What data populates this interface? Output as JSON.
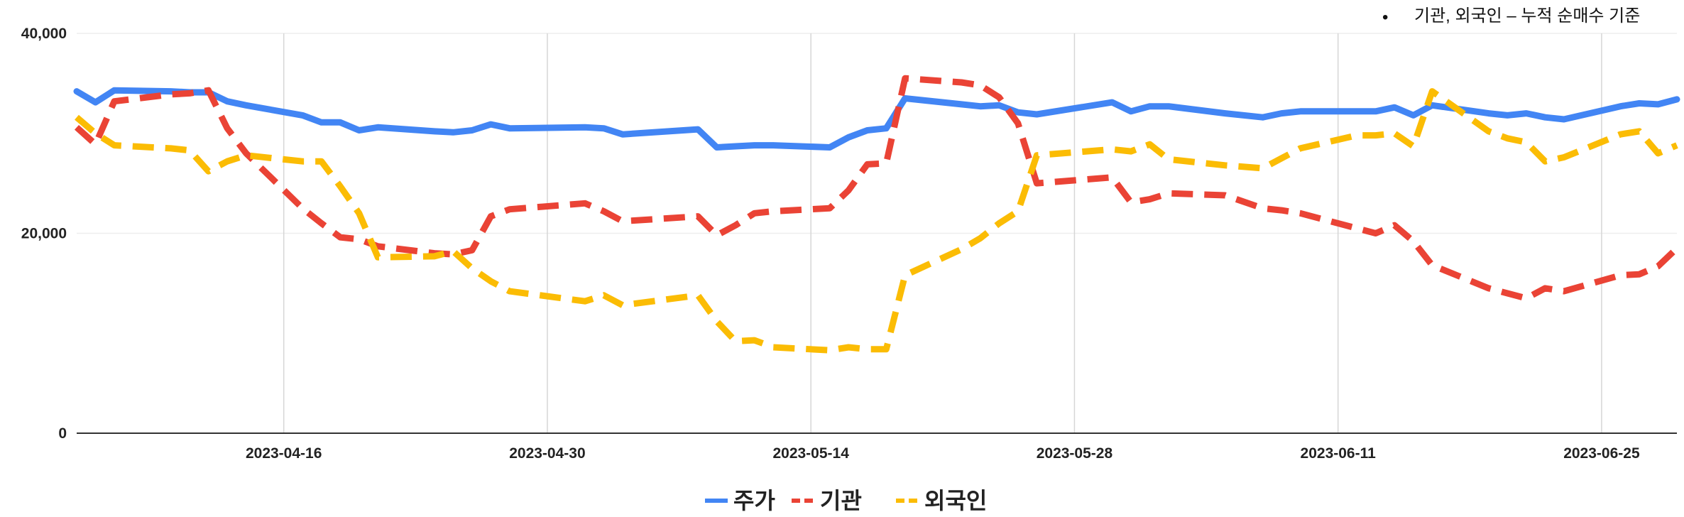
{
  "note": {
    "bullet": "•",
    "text": "기관, 외국인 – 누적 순매수 기준"
  },
  "chart_data": {
    "type": "line",
    "title": "",
    "xlabel": "",
    "ylabel": "",
    "ylim": [
      0,
      40000
    ],
    "yticks": [
      {
        "value": 0,
        "label": "0"
      },
      {
        "value": 20000,
        "label": "20,000"
      },
      {
        "value": 40000,
        "label": "40,000"
      }
    ],
    "xlim": [
      "2023-04-05",
      "2023-06-29"
    ],
    "xticks": [
      {
        "date": "2023-04-16",
        "label": "2023-04-16"
      },
      {
        "date": "2023-04-30",
        "label": "2023-04-30"
      },
      {
        "date": "2023-05-14",
        "label": "2023-05-14"
      },
      {
        "date": "2023-05-28",
        "label": "2023-05-28"
      },
      {
        "date": "2023-06-11",
        "label": "2023-06-11"
      },
      {
        "date": "2023-06-25",
        "label": "2023-06-25"
      }
    ],
    "grid": true,
    "legend_position": "bottom",
    "series": [
      {
        "name": "주가",
        "color": "#4285F4",
        "dash": "solid",
        "points": [
          [
            "2023-04-05",
            34200
          ],
          [
            "2023-04-06",
            33100
          ],
          [
            "2023-04-07",
            34300
          ],
          [
            "2023-04-10",
            34200
          ],
          [
            "2023-04-11",
            34100
          ],
          [
            "2023-04-12",
            34100
          ],
          [
            "2023-04-13",
            33200
          ],
          [
            "2023-04-14",
            32800
          ],
          [
            "2023-04-17",
            31800
          ],
          [
            "2023-04-18",
            31100
          ],
          [
            "2023-04-19",
            31100
          ],
          [
            "2023-04-20",
            30300
          ],
          [
            "2023-04-21",
            30600
          ],
          [
            "2023-04-24",
            30200
          ],
          [
            "2023-04-25",
            30100
          ],
          [
            "2023-04-26",
            30300
          ],
          [
            "2023-04-27",
            30900
          ],
          [
            "2023-04-28",
            30500
          ],
          [
            "2023-05-02",
            30600
          ],
          [
            "2023-05-03",
            30500
          ],
          [
            "2023-05-04",
            29900
          ],
          [
            "2023-05-08",
            30400
          ],
          [
            "2023-05-09",
            28600
          ],
          [
            "2023-05-10",
            28700
          ],
          [
            "2023-05-11",
            28800
          ],
          [
            "2023-05-12",
            28800
          ],
          [
            "2023-05-15",
            28600
          ],
          [
            "2023-05-16",
            29600
          ],
          [
            "2023-05-17",
            30300
          ],
          [
            "2023-05-18",
            30500
          ],
          [
            "2023-05-19",
            33500
          ],
          [
            "2023-05-22",
            32900
          ],
          [
            "2023-05-23",
            32700
          ],
          [
            "2023-05-24",
            32800
          ],
          [
            "2023-05-25",
            32100
          ],
          [
            "2023-05-26",
            31900
          ],
          [
            "2023-05-30",
            33100
          ],
          [
            "2023-05-31",
            32200
          ],
          [
            "2023-06-01",
            32700
          ],
          [
            "2023-06-02",
            32700
          ],
          [
            "2023-06-05",
            32000
          ],
          [
            "2023-06-07",
            31600
          ],
          [
            "2023-06-08",
            32000
          ],
          [
            "2023-06-09",
            32200
          ],
          [
            "2023-06-12",
            32200
          ],
          [
            "2023-06-13",
            32200
          ],
          [
            "2023-06-14",
            32600
          ],
          [
            "2023-06-15",
            31800
          ],
          [
            "2023-06-16",
            32800
          ],
          [
            "2023-06-19",
            32000
          ],
          [
            "2023-06-20",
            31800
          ],
          [
            "2023-06-21",
            32000
          ],
          [
            "2023-06-22",
            31600
          ],
          [
            "2023-06-23",
            31400
          ],
          [
            "2023-06-26",
            32700
          ],
          [
            "2023-06-27",
            33000
          ],
          [
            "2023-06-28",
            32900
          ],
          [
            "2023-06-29",
            33400
          ]
        ]
      },
      {
        "name": "기관",
        "color": "#EA4335",
        "dash": "dashed",
        "points": [
          [
            "2023-04-05",
            30600
          ],
          [
            "2023-04-06",
            28900
          ],
          [
            "2023-04-07",
            33200
          ],
          [
            "2023-04-10",
            33900
          ],
          [
            "2023-04-11",
            34000
          ],
          [
            "2023-04-12",
            34300
          ],
          [
            "2023-04-13",
            30500
          ],
          [
            "2023-04-14",
            28000
          ],
          [
            "2023-04-17",
            22500
          ],
          [
            "2023-04-18",
            21000
          ],
          [
            "2023-04-19",
            19600
          ],
          [
            "2023-04-20",
            19400
          ],
          [
            "2023-04-21",
            18700
          ],
          [
            "2023-04-24",
            18000
          ],
          [
            "2023-04-25",
            17900
          ],
          [
            "2023-04-26",
            18300
          ],
          [
            "2023-04-27",
            21700
          ],
          [
            "2023-04-28",
            22400
          ],
          [
            "2023-05-02",
            23000
          ],
          [
            "2023-05-03",
            22200
          ],
          [
            "2023-05-04",
            21200
          ],
          [
            "2023-05-08",
            21700
          ],
          [
            "2023-05-09",
            19800
          ],
          [
            "2023-05-10",
            20800
          ],
          [
            "2023-05-11",
            22000
          ],
          [
            "2023-05-12",
            22200
          ],
          [
            "2023-05-15",
            22500
          ],
          [
            "2023-05-16",
            24300
          ],
          [
            "2023-05-17",
            26900
          ],
          [
            "2023-05-18",
            27000
          ],
          [
            "2023-05-19",
            35500
          ],
          [
            "2023-05-22",
            35100
          ],
          [
            "2023-05-23",
            34800
          ],
          [
            "2023-05-24",
            33600
          ],
          [
            "2023-05-25",
            31000
          ],
          [
            "2023-05-26",
            25000
          ],
          [
            "2023-05-30",
            25600
          ],
          [
            "2023-05-31",
            23100
          ],
          [
            "2023-06-01",
            23400
          ],
          [
            "2023-06-02",
            24000
          ],
          [
            "2023-06-05",
            23800
          ],
          [
            "2023-06-07",
            22500
          ],
          [
            "2023-06-08",
            22300
          ],
          [
            "2023-06-09",
            22000
          ],
          [
            "2023-06-12",
            20500
          ],
          [
            "2023-06-13",
            20000
          ],
          [
            "2023-06-14",
            20800
          ],
          [
            "2023-06-15",
            19200
          ],
          [
            "2023-06-16",
            16800
          ],
          [
            "2023-06-19",
            14500
          ],
          [
            "2023-06-20",
            14000
          ],
          [
            "2023-06-21",
            13500
          ],
          [
            "2023-06-22",
            14500
          ],
          [
            "2023-06-23",
            14200
          ],
          [
            "2023-06-26",
            15800
          ],
          [
            "2023-06-27",
            15900
          ],
          [
            "2023-06-28",
            16700
          ],
          [
            "2023-06-29",
            18500
          ]
        ]
      },
      {
        "name": "외국인",
        "color": "#FBBC04",
        "dash": "dashed",
        "points": [
          [
            "2023-04-05",
            31600
          ],
          [
            "2023-04-06",
            30000
          ],
          [
            "2023-04-07",
            28800
          ],
          [
            "2023-04-10",
            28500
          ],
          [
            "2023-04-11",
            28300
          ],
          [
            "2023-04-12",
            26200
          ],
          [
            "2023-04-13",
            27200
          ],
          [
            "2023-04-14",
            27800
          ],
          [
            "2023-04-17",
            27200
          ],
          [
            "2023-04-18",
            27200
          ],
          [
            "2023-04-19",
            24700
          ],
          [
            "2023-04-20",
            22000
          ],
          [
            "2023-04-21",
            17600
          ],
          [
            "2023-04-24",
            17700
          ],
          [
            "2023-04-25",
            18200
          ],
          [
            "2023-04-26",
            16500
          ],
          [
            "2023-04-27",
            15200
          ],
          [
            "2023-04-28",
            14200
          ],
          [
            "2023-05-02",
            13200
          ],
          [
            "2023-05-03",
            13800
          ],
          [
            "2023-05-04",
            12800
          ],
          [
            "2023-05-08",
            13800
          ],
          [
            "2023-05-09",
            11200
          ],
          [
            "2023-05-10",
            9200
          ],
          [
            "2023-05-11",
            9300
          ],
          [
            "2023-05-12",
            8600
          ],
          [
            "2023-05-15",
            8300
          ],
          [
            "2023-05-16",
            8600
          ],
          [
            "2023-05-17",
            8400
          ],
          [
            "2023-05-18",
            8400
          ],
          [
            "2023-05-19",
            15800
          ],
          [
            "2023-05-22",
            18400
          ],
          [
            "2023-05-23",
            19500
          ],
          [
            "2023-05-24",
            21000
          ],
          [
            "2023-05-25",
            22200
          ],
          [
            "2023-05-26",
            27800
          ],
          [
            "2023-05-30",
            28400
          ],
          [
            "2023-05-31",
            28200
          ],
          [
            "2023-06-01",
            28900
          ],
          [
            "2023-06-02",
            27400
          ],
          [
            "2023-06-05",
            26800
          ],
          [
            "2023-06-07",
            26500
          ],
          [
            "2023-06-08",
            27500
          ],
          [
            "2023-06-09",
            28500
          ],
          [
            "2023-06-12",
            29800
          ],
          [
            "2023-06-13",
            29800
          ],
          [
            "2023-06-14",
            30000
          ],
          [
            "2023-06-15",
            28700
          ],
          [
            "2023-06-16",
            34200
          ],
          [
            "2023-06-19",
            30200
          ],
          [
            "2023-06-20",
            29500
          ],
          [
            "2023-06-21",
            29100
          ],
          [
            "2023-06-22",
            27200
          ],
          [
            "2023-06-23",
            27600
          ],
          [
            "2023-06-26",
            29900
          ],
          [
            "2023-06-27",
            30200
          ],
          [
            "2023-06-28",
            28000
          ],
          [
            "2023-06-29",
            28800
          ]
        ]
      }
    ]
  }
}
